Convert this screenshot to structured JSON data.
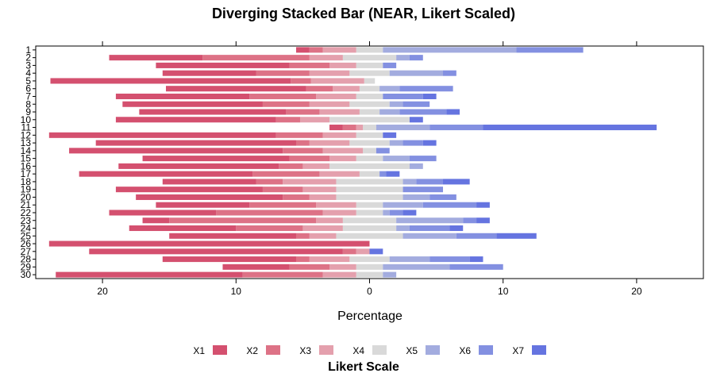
{
  "chart_data": {
    "type": "bar",
    "orientation": "horizontal",
    "stacking": "diverging",
    "title": "Diverging Stacked Bar (NEAR, Likert Scaled)",
    "xlabel": "Percentage",
    "ylabel": "",
    "xlim": [
      -25,
      25
    ],
    "x_ticks": [
      -20,
      -10,
      0,
      10,
      20
    ],
    "x_tick_labels": [
      "20",
      "10",
      "0",
      "10",
      "20"
    ],
    "grid": false,
    "legend_title": "Likert Scale",
    "legend_position": "bottom",
    "categories": [
      "1",
      "2",
      "3",
      "4",
      "5",
      "6",
      "7",
      "8",
      "9",
      "10",
      "11",
      "12",
      "13",
      "14",
      "15",
      "16",
      "17",
      "18",
      "19",
      "20",
      "21",
      "22",
      "23",
      "24",
      "25",
      "26",
      "27",
      "28",
      "29",
      "30"
    ],
    "series": [
      {
        "name": "X1",
        "color": "#d4506f",
        "values": [
          1.0,
          7.0,
          10.0,
          7.0,
          18.0,
          10.5,
          10.0,
          10.5,
          11.0,
          12.0,
          1.0,
          17.0,
          15.0,
          16.0,
          11.0,
          12.0,
          13.0,
          7.0,
          11.0,
          11.0,
          7.0,
          8.0,
          2.0,
          8.0,
          9.5,
          24.0,
          19.0,
          10.0,
          5.0,
          14.0
        ]
      },
      {
        "name": "X2",
        "color": "#dd7286",
        "values": [
          1.0,
          8.0,
          3.0,
          4.0,
          1.5,
          2.0,
          5.0,
          3.5,
          2.5,
          1.8,
          1.0,
          3.5,
          1.0,
          3.0,
          3.0,
          1.8,
          5.0,
          2.0,
          3.0,
          2.0,
          5.0,
          8.0,
          11.0,
          5.0,
          1.0,
          0.0,
          1.0,
          1.0,
          3.0,
          6.0
        ]
      },
      {
        "name": "X3",
        "color": "#e4a0ad",
        "values": [
          2.5,
          2.5,
          2.0,
          3.0,
          4.0,
          2.0,
          3.0,
          3.0,
          3.0,
          2.2,
          0.5,
          2.5,
          3.0,
          3.0,
          2.0,
          2.0,
          3.0,
          4.0,
          2.5,
          2.0,
          3.0,
          2.5,
          2.0,
          3.0,
          2.0,
          0.0,
          1.0,
          3.0,
          2.0,
          2.5
        ]
      },
      {
        "name": "X4",
        "color": "#d9d9d9",
        "values": [
          2.0,
          4.0,
          2.0,
          3.0,
          0.8,
          1.5,
          2.0,
          3.0,
          1.5,
          6.0,
          1.0,
          2.0,
          3.0,
          1.0,
          2.0,
          6.0,
          1.5,
          5.0,
          5.0,
          5.0,
          2.0,
          2.0,
          4.0,
          4.0,
          5.0,
          0.0,
          0.0,
          3.0,
          2.0,
          2.0
        ]
      },
      {
        "name": "X5",
        "color": "#a3acdf",
        "values": [
          10.0,
          1.0,
          0.0,
          4.0,
          0.0,
          1.5,
          0.0,
          1.0,
          1.5,
          0.0,
          4.0,
          0.0,
          1.0,
          0.0,
          2.0,
          1.0,
          0.0,
          1.0,
          0.0,
          2.0,
          3.0,
          0.5,
          5.0,
          1.0,
          4.0,
          0.0,
          0.0,
          3.0,
          5.0,
          1.0
        ]
      },
      {
        "name": "X6",
        "color": "#8390e1",
        "values": [
          5.0,
          1.0,
          1.0,
          1.0,
          0.0,
          4.0,
          3.0,
          2.0,
          3.5,
          0.0,
          4.0,
          0.0,
          1.5,
          1.0,
          2.0,
          0.0,
          0.5,
          2.0,
          3.0,
          2.0,
          4.0,
          1.0,
          1.0,
          3.0,
          3.0,
          0.0,
          0.0,
          3.0,
          4.0,
          0.0
        ]
      },
      {
        "name": "X7",
        "color": "#6574e0",
        "values": [
          0.0,
          0.0,
          0.0,
          0.0,
          0.0,
          0.0,
          1.0,
          0.0,
          1.0,
          1.0,
          13.0,
          1.0,
          1.0,
          0.0,
          0.0,
          0.0,
          1.0,
          2.0,
          0.0,
          0.0,
          1.0,
          1.0,
          1.0,
          1.0,
          3.0,
          0.0,
          1.0,
          1.0,
          0.0,
          0.0
        ]
      }
    ],
    "x_split_series": "X4"
  }
}
